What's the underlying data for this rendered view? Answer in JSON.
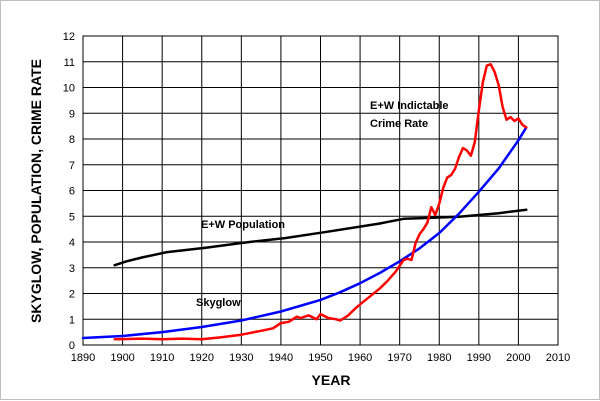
{
  "chart_data": {
    "type": "line",
    "title": "",
    "xlabel": "YEAR",
    "ylabel": "SKYGLOW, POPULATION, CRIME RATE",
    "xlim": [
      1890,
      2010
    ],
    "ylim": [
      0,
      12
    ],
    "grid": true,
    "x_ticks": [
      "1890",
      "1900",
      "1910",
      "1920",
      "1930",
      "1940",
      "1950",
      "1960",
      "1970",
      "1980",
      "1990",
      "2000",
      "2010"
    ],
    "y_ticks": [
      "0",
      "1",
      "2",
      "3",
      "4",
      "5",
      "6",
      "7",
      "8",
      "9",
      "10",
      "11",
      "12"
    ],
    "series": [
      {
        "name": "E+W Population",
        "color": "#000000",
        "x": [
          1898,
          1901,
          1905,
          1911,
          1921,
          1931,
          1941,
          1951,
          1961,
          1965,
          1971,
          1975,
          1980,
          1985,
          1990,
          1995,
          2002
        ],
        "y": [
          3.1,
          3.25,
          3.4,
          3.6,
          3.78,
          3.98,
          4.15,
          4.38,
          4.62,
          4.72,
          4.9,
          4.92,
          4.95,
          4.98,
          5.05,
          5.12,
          5.25
        ]
      },
      {
        "name": "Skyglow",
        "color": "#0000ff",
        "x": [
          1890,
          1900,
          1910,
          1920,
          1930,
          1940,
          1950,
          1955,
          1960,
          1965,
          1970,
          1975,
          1980,
          1985,
          1990,
          1995,
          2000,
          2002
        ],
        "y": [
          0.27,
          0.35,
          0.5,
          0.7,
          0.95,
          1.3,
          1.75,
          2.05,
          2.4,
          2.8,
          3.25,
          3.75,
          4.35,
          5.1,
          5.95,
          6.85,
          7.95,
          8.45
        ]
      },
      {
        "name": "E+W Indictable Crime Rate",
        "color": "#ff0000",
        "x": [
          1898,
          1905,
          1910,
          1915,
          1920,
          1925,
          1930,
          1935,
          1938,
          1940,
          1942,
          1944,
          1945,
          1947,
          1949,
          1950,
          1952,
          1954,
          1955,
          1957,
          1959,
          1961,
          1963,
          1965,
          1967,
          1969,
          1971,
          1972,
          1973,
          1974,
          1975,
          1976,
          1977,
          1978,
          1979,
          1980,
          1981,
          1982,
          1983,
          1984,
          1985,
          1986,
          1987,
          1988,
          1989,
          1990,
          1991,
          1992,
          1993,
          1994,
          1995,
          1996,
          1997,
          1998,
          1999,
          2000,
          2001,
          2002
        ],
        "y": [
          0.22,
          0.25,
          0.22,
          0.25,
          0.22,
          0.3,
          0.4,
          0.55,
          0.65,
          0.85,
          0.9,
          1.1,
          1.05,
          1.15,
          1.0,
          1.2,
          1.05,
          1.0,
          0.95,
          1.15,
          1.45,
          1.7,
          1.95,
          2.2,
          2.5,
          2.85,
          3.3,
          3.35,
          3.3,
          3.95,
          4.3,
          4.5,
          4.75,
          5.35,
          5.05,
          5.5,
          6.1,
          6.5,
          6.6,
          6.85,
          7.3,
          7.65,
          7.55,
          7.35,
          7.9,
          9.1,
          10.2,
          10.85,
          10.9,
          10.6,
          10.1,
          9.25,
          8.75,
          8.85,
          8.7,
          8.8,
          8.55,
          8.45
        ]
      }
    ],
    "annotations": [
      {
        "lines": [
          "E+W Indictable",
          "Crime Rate"
        ],
        "target": "crime"
      },
      {
        "lines": [
          "E+W Population"
        ],
        "target": "population"
      },
      {
        "lines": [
          "Skyglow"
        ],
        "target": "skyglow"
      }
    ]
  }
}
